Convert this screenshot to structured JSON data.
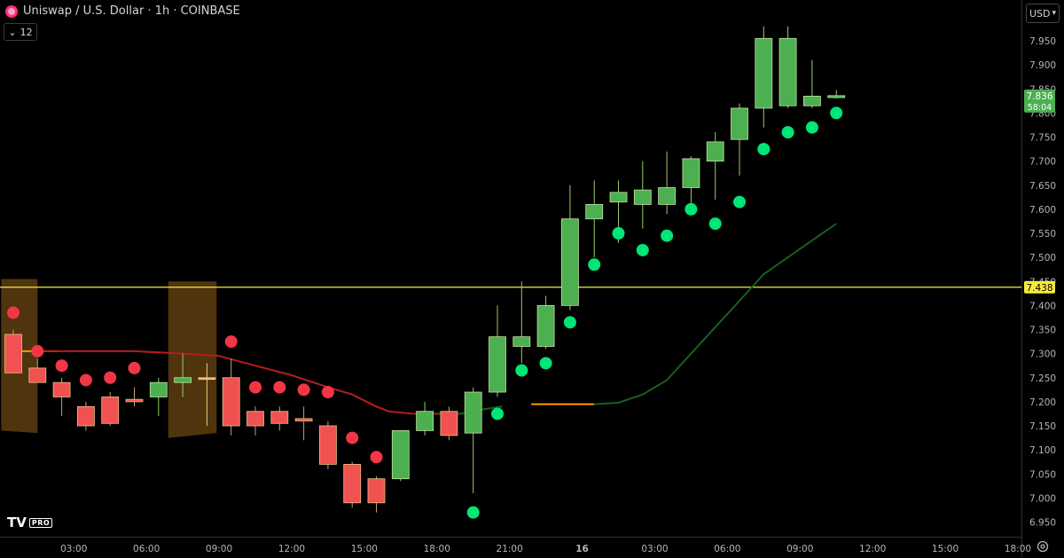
{
  "header": {
    "title": "Uniswap / U.S. Dollar · 1h · COINBASE",
    "interval_value": "12"
  },
  "currency_selector": {
    "label": "USD"
  },
  "logo": {
    "text": "TV",
    "badge": "PRO"
  },
  "colors": {
    "background": "#000000",
    "bull": "#4caf50",
    "bear": "#f05252",
    "bull_dot": "#00e676",
    "bear_dot": "#f23645",
    "ma_red": "#b71c1c",
    "ma_green": "#1b5e20",
    "ma_orange": "#ff9800",
    "hline": "#f5eb3b",
    "zone": "#6b4513",
    "grid_text": "#b2b5be"
  },
  "chart_data": {
    "type": "candlestick",
    "ylim": [
      6.93,
      7.99
    ],
    "y_ticks": [
      "7.950",
      "7.900",
      "7.850",
      "7.800",
      "7.750",
      "7.700",
      "7.650",
      "7.600",
      "7.550",
      "7.500",
      "7.450",
      "7.400",
      "7.350",
      "7.300",
      "7.250",
      "7.200",
      "7.150",
      "7.100",
      "7.050",
      "7.000",
      "6.950"
    ],
    "x_ticks": [
      {
        "label": "03:00",
        "i": 2.5
      },
      {
        "label": "06:00",
        "i": 5.5
      },
      {
        "label": "09:00",
        "i": 8.5
      },
      {
        "label": "12:00",
        "i": 11.5
      },
      {
        "label": "15:00",
        "i": 14.5
      },
      {
        "label": "18:00",
        "i": 17.5
      },
      {
        "label": "21:00",
        "i": 20.5
      },
      {
        "label": "16",
        "i": 23.5
      },
      {
        "label": "03:00",
        "i": 26.5
      },
      {
        "label": "06:00",
        "i": 29.5
      },
      {
        "label": "09:00",
        "i": 32.5
      },
      {
        "label": "12:00",
        "i": 35.5
      },
      {
        "label": "15:00",
        "i": 38.5
      },
      {
        "label": "18:00",
        "i": 41.5
      }
    ],
    "candles": [
      {
        "o": 7.34,
        "h": 7.35,
        "l": 7.26,
        "c": 7.26
      },
      {
        "o": 7.27,
        "h": 7.29,
        "l": 7.24,
        "c": 7.24
      },
      {
        "o": 7.24,
        "h": 7.25,
        "l": 7.17,
        "c": 7.21
      },
      {
        "o": 7.19,
        "h": 7.2,
        "l": 7.14,
        "c": 7.15
      },
      {
        "o": 7.21,
        "h": 7.22,
        "l": 7.15,
        "c": 7.155
      },
      {
        "o": 7.205,
        "h": 7.23,
        "l": 7.19,
        "c": 7.2
      },
      {
        "o": 7.21,
        "h": 7.25,
        "l": 7.17,
        "c": 7.24
      },
      {
        "o": 7.24,
        "h": 7.3,
        "l": 7.21,
        "c": 7.25
      },
      {
        "o": 7.25,
        "h": 7.28,
        "l": 7.15,
        "c": 7.25
      },
      {
        "o": 7.25,
        "h": 7.29,
        "l": 7.13,
        "c": 7.15
      },
      {
        "o": 7.18,
        "h": 7.19,
        "l": 7.13,
        "c": 7.15
      },
      {
        "o": 7.18,
        "h": 7.19,
        "l": 7.14,
        "c": 7.155
      },
      {
        "o": 7.165,
        "h": 7.19,
        "l": 7.12,
        "c": 7.16
      },
      {
        "o": 7.15,
        "h": 7.16,
        "l": 7.06,
        "c": 7.07
      },
      {
        "o": 7.07,
        "h": 7.075,
        "l": 6.98,
        "c": 6.99
      },
      {
        "o": 7.04,
        "h": 7.045,
        "l": 6.97,
        "c": 6.99
      },
      {
        "o": 7.04,
        "h": 7.14,
        "l": 7.035,
        "c": 7.14
      },
      {
        "o": 7.14,
        "h": 7.2,
        "l": 7.13,
        "c": 7.18
      },
      {
        "o": 7.18,
        "h": 7.19,
        "l": 7.12,
        "c": 7.13
      },
      {
        "o": 7.135,
        "h": 7.23,
        "l": 7.01,
        "c": 7.22
      },
      {
        "o": 7.22,
        "h": 7.4,
        "l": 7.21,
        "c": 7.335
      },
      {
        "o": 7.315,
        "h": 7.45,
        "l": 7.28,
        "c": 7.335
      },
      {
        "o": 7.315,
        "h": 7.42,
        "l": 7.31,
        "c": 7.4
      },
      {
        "o": 7.4,
        "h": 7.65,
        "l": 7.39,
        "c": 7.58
      },
      {
        "o": 7.58,
        "h": 7.66,
        "l": 7.5,
        "c": 7.61
      },
      {
        "o": 7.615,
        "h": 7.66,
        "l": 7.53,
        "c": 7.635
      },
      {
        "o": 7.61,
        "h": 7.7,
        "l": 7.56,
        "c": 7.64
      },
      {
        "o": 7.61,
        "h": 7.72,
        "l": 7.59,
        "c": 7.645
      },
      {
        "o": 7.645,
        "h": 7.71,
        "l": 7.6,
        "c": 7.705
      },
      {
        "o": 7.7,
        "h": 7.76,
        "l": 7.62,
        "c": 7.74
      },
      {
        "o": 7.745,
        "h": 7.82,
        "l": 7.67,
        "c": 7.81
      },
      {
        "o": 7.81,
        "h": 7.98,
        "l": 7.77,
        "c": 7.955
      },
      {
        "o": 7.815,
        "h": 7.98,
        "l": 7.81,
        "c": 7.955
      },
      {
        "o": 7.815,
        "h": 7.91,
        "l": 7.81,
        "c": 7.835
      },
      {
        "o": 7.832,
        "h": 7.848,
        "l": 7.83,
        "c": 7.836
      }
    ],
    "sar_dots": [
      {
        "i": 0,
        "v": 7.385,
        "side": "bear"
      },
      {
        "i": 1,
        "v": 7.305,
        "side": "bear"
      },
      {
        "i": 2,
        "v": 7.275,
        "side": "bear"
      },
      {
        "i": 3,
        "v": 7.245,
        "side": "bear"
      },
      {
        "i": 4,
        "v": 7.25,
        "side": "bear"
      },
      {
        "i": 5,
        "v": 7.27,
        "side": "bear"
      },
      {
        "i": 9,
        "v": 7.325,
        "side": "bear"
      },
      {
        "i": 10,
        "v": 7.23,
        "side": "bear"
      },
      {
        "i": 11,
        "v": 7.23,
        "side": "bear"
      },
      {
        "i": 12,
        "v": 7.225,
        "side": "bear"
      },
      {
        "i": 13,
        "v": 7.22,
        "side": "bear"
      },
      {
        "i": 14,
        "v": 7.125,
        "side": "bear"
      },
      {
        "i": 15,
        "v": 7.085,
        "side": "bear"
      },
      {
        "i": 19,
        "v": 6.97,
        "side": "bull"
      },
      {
        "i": 20,
        "v": 7.175,
        "side": "bull"
      },
      {
        "i": 21,
        "v": 7.265,
        "side": "bull"
      },
      {
        "i": 22,
        "v": 7.28,
        "side": "bull"
      },
      {
        "i": 23,
        "v": 7.365,
        "side": "bull"
      },
      {
        "i": 24,
        "v": 7.485,
        "side": "bull"
      },
      {
        "i": 25,
        "v": 7.55,
        "side": "bull"
      },
      {
        "i": 26,
        "v": 7.515,
        "side": "bull"
      },
      {
        "i": 27,
        "v": 7.545,
        "side": "bull"
      },
      {
        "i": 28,
        "v": 7.6,
        "side": "bull"
      },
      {
        "i": 29,
        "v": 7.57,
        "side": "bull"
      },
      {
        "i": 30,
        "v": 7.615,
        "side": "bull"
      },
      {
        "i": 31,
        "v": 7.725,
        "side": "bull"
      },
      {
        "i": 32,
        "v": 7.76,
        "side": "bull"
      },
      {
        "i": 33,
        "v": 7.77,
        "side": "bull"
      },
      {
        "i": 34,
        "v": 7.8,
        "side": "bull"
      }
    ],
    "ma_segments": [
      {
        "color": "ma_orange",
        "pts": [
          [
            0,
            7.305
          ],
          [
            1,
            7.305
          ],
          [
            1.9,
            7.305
          ]
        ]
      },
      {
        "color": "ma_red",
        "pts": [
          [
            1,
            7.305
          ],
          [
            3,
            7.305
          ],
          [
            5,
            7.305
          ],
          [
            7,
            7.3
          ],
          [
            8.5,
            7.295
          ],
          [
            10,
            7.275
          ],
          [
            11.5,
            7.255
          ],
          [
            13,
            7.23
          ],
          [
            14,
            7.215
          ],
          [
            15,
            7.19
          ],
          [
            15.5,
            7.18
          ],
          [
            16.5,
            7.175
          ],
          [
            17.5,
            7.175
          ]
        ]
      },
      {
        "color": "ma_green",
        "pts": [
          [
            17.5,
            7.175
          ],
          [
            18.5,
            7.175
          ],
          [
            19.5,
            7.185
          ],
          [
            20.2,
            7.19
          ]
        ]
      },
      {
        "color": "ma_orange",
        "pts": [
          [
            21.4,
            7.195
          ],
          [
            22.5,
            7.195
          ],
          [
            24,
            7.195
          ]
        ]
      },
      {
        "color": "ma_green",
        "pts": [
          [
            24,
            7.195
          ],
          [
            25,
            7.198
          ],
          [
            26,
            7.215
          ],
          [
            27,
            7.245
          ],
          [
            28,
            7.3
          ],
          [
            29,
            7.355
          ],
          [
            30,
            7.41
          ],
          [
            31,
            7.465
          ],
          [
            32,
            7.5
          ],
          [
            33,
            7.535
          ],
          [
            34,
            7.57
          ]
        ]
      }
    ],
    "zones": [
      {
        "from": -0.5,
        "to": 1,
        "top": 7.455,
        "bottom_left": 7.14,
        "bottom_right": 7.135
      },
      {
        "from": 6.4,
        "to": 8.4,
        "top": 7.45,
        "bottom_left": 7.125,
        "bottom_right": 7.135
      }
    ],
    "hline": {
      "value": 7.438,
      "label": "7.438"
    },
    "price_label": {
      "value": 7.836,
      "label": "7.836",
      "countdown": "58:04"
    }
  }
}
